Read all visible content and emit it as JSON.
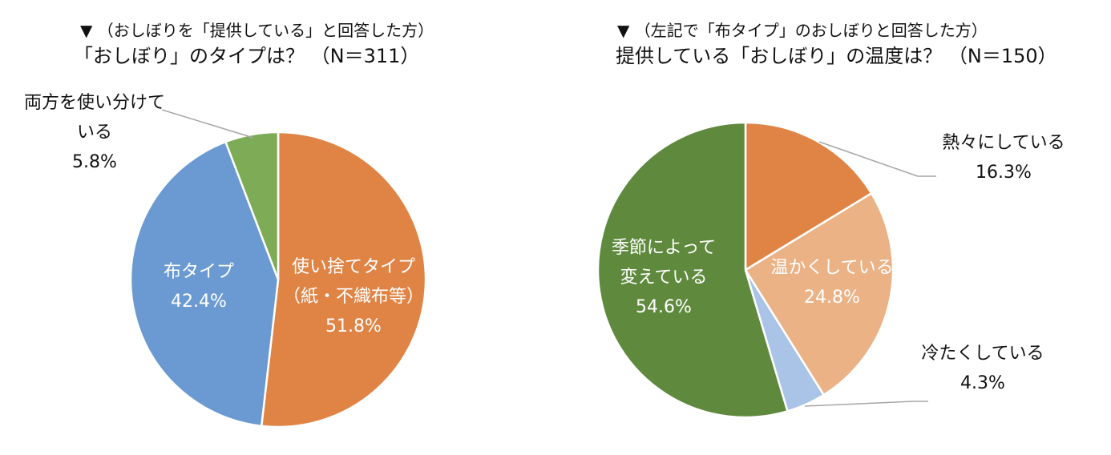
{
  "chart_data": [
    {
      "type": "pie",
      "title_line1": "▼ （おしぼりを「提供している」と回答した方）",
      "title_line2": "「おしぼり」のタイプは？ （N＝311）",
      "slices": [
        {
          "label_lines": [
            "使い捨てタイプ",
            "（紙・不織布等）"
          ],
          "value": 51.8,
          "value_text": "51.8%",
          "color": "#E08445"
        },
        {
          "label_lines": [
            "布タイプ"
          ],
          "value": 42.4,
          "value_text": "42.4%",
          "color": "#6A9AD1"
        },
        {
          "label_lines": [
            "両方を使い分けて",
            "いる"
          ],
          "value": 5.8,
          "value_text": "5.8%",
          "color": "#7EAB55"
        }
      ]
    },
    {
      "type": "pie",
      "title_line1": "▼ （左記で「布タイプ」のおしぼりと回答した方）",
      "title_line2": "提供している「おしぼり」の温度は？ （N＝150）",
      "slices": [
        {
          "label_lines": [
            "熱々にしている"
          ],
          "value": 16.3,
          "value_text": "16.3%",
          "color": "#E08445"
        },
        {
          "label_lines": [
            "温かくしている"
          ],
          "value": 24.8,
          "value_text": "24.8%",
          "color": "#EBB285"
        },
        {
          "label_lines": [
            "冷たくしている"
          ],
          "value": 4.3,
          "value_text": "4.3%",
          "color": "#A9C4E6"
        },
        {
          "label_lines": [
            "季節によって",
            "変えている"
          ],
          "value": 54.6,
          "value_text": "54.6%",
          "color": "#5F8A3E"
        }
      ]
    }
  ]
}
